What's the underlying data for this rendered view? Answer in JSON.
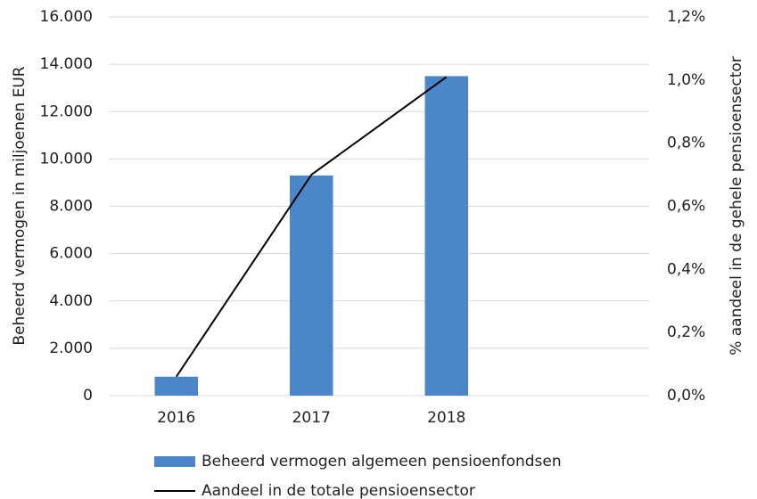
{
  "chart_data": {
    "type": "bar_line",
    "categories": [
      "2016",
      "2017",
      "2018",
      null
    ],
    "series": [
      {
        "name": "Beheerd vermogen algemeen pensioenfondsen",
        "color": "#4a86c8",
        "type": "bar",
        "values": [
          800,
          9300,
          13500,
          null
        ]
      },
      {
        "name": "Aandeel in de totale pensioensector",
        "color": "#000000",
        "type": "line",
        "axis": "y2",
        "values": [
          0.06,
          0.7,
          1.01,
          null
        ]
      }
    ],
    "ylabel": "Beheerd vermogen in miljoenen EUR",
    "y2label": "% aandeel in de gehele pensioensector",
    "ylim": [
      0,
      16000
    ],
    "yticks": [
      0,
      {
        "value": 2000,
        "label": "2.000"
      },
      {
        "value": 4000,
        "label": "4.000"
      },
      {
        "value": 6000,
        "label": "6.000"
      },
      {
        "value": 8000,
        "label": "8.000"
      },
      {
        "value": 10000,
        "label": "10.000"
      },
      {
        "value": 12000,
        "label": "12.000"
      },
      {
        "value": 14000,
        "label": "14.000"
      },
      {
        "value": 16000,
        "label": "16.000"
      }
    ],
    "y2lim": [
      0,
      1.2
    ],
    "y2ticks": [
      {
        "value": 0,
        "label": "0,0%"
      },
      {
        "value": 0.2,
        "label": "0,2%"
      },
      {
        "value": 0.4,
        "label": "0,4%"
      },
      {
        "value": 0.6,
        "label": "0,6%"
      },
      {
        "value": 0.8,
        "label": "0,8%"
      },
      {
        "value": 1.0,
        "label": "1,0%"
      },
      {
        "value": 1.2,
        "label": "1,2%"
      }
    ],
    "grid": true,
    "legend": "bottom"
  }
}
